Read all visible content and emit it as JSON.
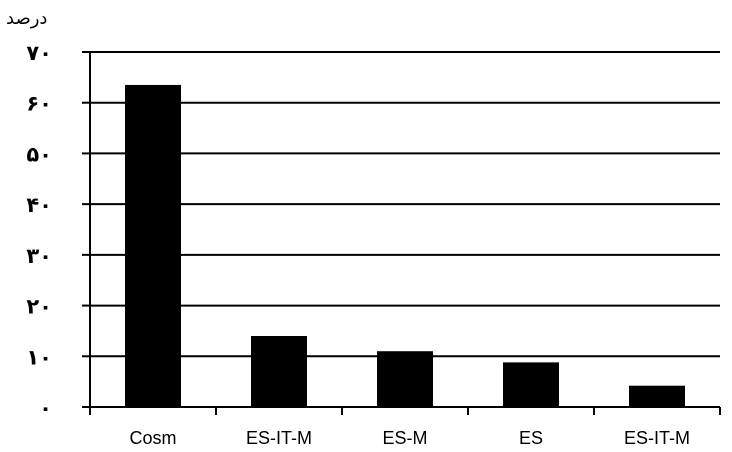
{
  "chart_data": {
    "type": "bar",
    "ylabel": "درصد",
    "categories": [
      "Cosm",
      "ES-IT-M",
      "ES-M",
      "ES",
      "ES-IT-M"
    ],
    "values": [
      63.5,
      14,
      11,
      8.8,
      4.2
    ],
    "ylim": [
      0,
      70
    ],
    "yticks": [
      0,
      10,
      20,
      30,
      40,
      50,
      60,
      70
    ],
    "ytick_labels": [
      "۰",
      "۱۰",
      "۲۰",
      "۳۰",
      "۴۰",
      "۵۰",
      "۶۰",
      "۷۰"
    ],
    "grid": true,
    "bar_color": "#000000",
    "legend": "none"
  }
}
